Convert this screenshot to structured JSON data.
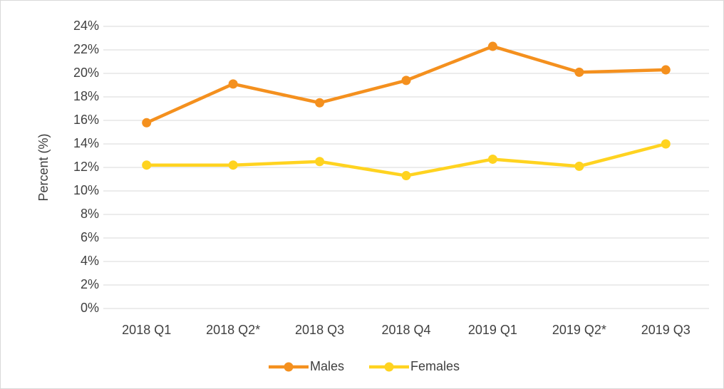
{
  "chart_data": {
    "type": "line",
    "y_label": "Percent (%)",
    "categories": [
      "2018 Q1",
      "2018 Q2*",
      "2018 Q3",
      "2018 Q4",
      "2019 Q1",
      "2019 Q2*",
      "2019 Q3"
    ],
    "series": [
      {
        "name": "Males",
        "color": "#f4901e",
        "values": [
          15.8,
          19.1,
          17.5,
          19.4,
          22.3,
          20.1,
          20.3
        ]
      },
      {
        "name": "Females",
        "color": "#ffd320",
        "values": [
          12.2,
          12.2,
          12.5,
          11.3,
          12.7,
          12.1,
          14.0
        ]
      }
    ],
    "ylim": [
      0,
      24
    ],
    "yticks": [
      {
        "value": 0,
        "label": "0%"
      },
      {
        "value": 2,
        "label": "2%"
      },
      {
        "value": 4,
        "label": "4%"
      },
      {
        "value": 6,
        "label": "6%"
      },
      {
        "value": 8,
        "label": "8%"
      },
      {
        "value": 10,
        "label": "10%"
      },
      {
        "value": 12,
        "label": "12%"
      },
      {
        "value": 14,
        "label": "14%"
      },
      {
        "value": 16,
        "label": "16%"
      },
      {
        "value": 18,
        "label": "18%"
      },
      {
        "value": 20,
        "label": "20%"
      },
      {
        "value": 22,
        "label": "22%"
      },
      {
        "value": 24,
        "label": "24%"
      }
    ],
    "grid": true,
    "legend": "bottom"
  }
}
